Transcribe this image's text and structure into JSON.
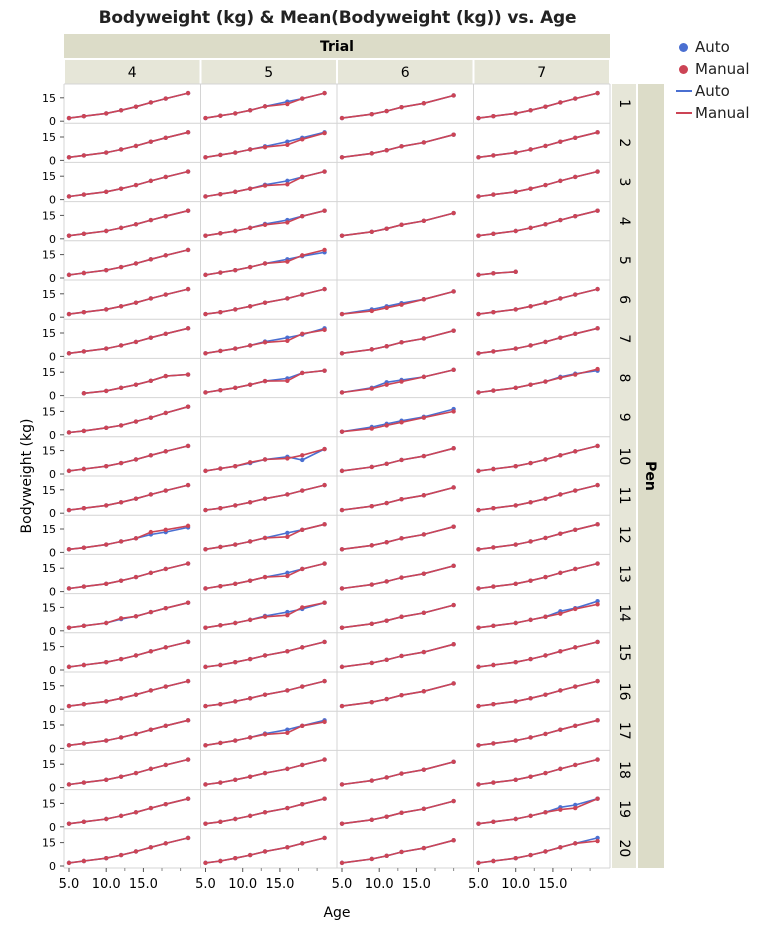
{
  "title": "Bodyweight (kg) & Mean(Bodyweight (kg)) vs. Age",
  "chart_data": {
    "type": "line",
    "title": "Bodyweight (kg) & Mean(Bodyweight (kg)) vs. Age",
    "xlabel": "Age",
    "ylabel": "Bodyweight (kg)",
    "column_group_label": "Trial",
    "row_group_label": "Pen",
    "trials": [
      "4",
      "5",
      "6",
      "7"
    ],
    "pens": [
      "1",
      "2",
      "3",
      "4",
      "5",
      "6",
      "7",
      "8",
      "9",
      "10",
      "11",
      "12",
      "13",
      "14",
      "15",
      "16",
      "17",
      "18",
      "19",
      "20"
    ],
    "x_ticks": [
      "5.0",
      "10.0",
      "15.0"
    ],
    "y_ticks": [
      "0",
      "15"
    ],
    "xlim": [
      5,
      22
    ],
    "ylim": [
      0,
      20
    ],
    "series": [
      {
        "name": "Auto",
        "type": "points",
        "color": "#4a6fd1"
      },
      {
        "name": "Manual",
        "type": "points",
        "color": "#cc4455"
      },
      {
        "name": "Auto",
        "type": "line",
        "color": "#4a6fd1"
      },
      {
        "name": "Manual",
        "type": "line",
        "color": "#cc4455"
      }
    ],
    "ages": {
      "4": [
        5,
        7,
        10,
        12,
        14,
        16,
        18,
        21
      ],
      "5": [
        5,
        7,
        9,
        11,
        13,
        16,
        18,
        21
      ],
      "6": [
        5,
        9,
        11,
        13,
        16,
        20
      ],
      "7": [
        5,
        7,
        10,
        12,
        14,
        16,
        18,
        21
      ]
    },
    "manual_base": [
      2,
      3.2,
      5,
      7,
      9.3,
      12,
      14.5,
      18
    ],
    "manual_base_6": [
      2,
      4.5,
      6.5,
      9,
      11.5,
      16.5
    ],
    "overrides": {
      "4-8": {
        "ages": [
          7,
          10,
          12,
          14,
          16,
          18,
          21
        ],
        "auto": [
          1.5,
          3,
          5,
          7,
          9.5,
          12.5,
          13.5
        ],
        "manual": [
          1.5,
          3,
          5,
          7,
          9.5,
          12.5,
          13.5
        ]
      },
      "4-9": {
        "ages": [
          5,
          7,
          10,
          12,
          14,
          16,
          18,
          21
        ],
        "auto": [
          1.5,
          2.5,
          4.5,
          6,
          8.5,
          11,
          14,
          18
        ],
        "manual": [
          1.5,
          2.5,
          4.5,
          6,
          8.5,
          11,
          14,
          18
        ]
      },
      "4-12": {
        "ages": [
          5,
          7,
          10,
          12,
          14,
          16,
          18,
          21
        ],
        "auto": [
          2,
          3,
          5,
          7,
          9,
          11.5,
          13,
          16
        ],
        "manual": [
          2,
          3,
          5,
          7,
          9,
          13,
          14.5,
          17
        ]
      },
      "4-14": {
        "ages": [
          5,
          7,
          10,
          12,
          14,
          16,
          18,
          21
        ],
        "auto": [
          2,
          3.2,
          5,
          7.5,
          9.3,
          12,
          14.5,
          18
        ],
        "manual": [
          2,
          3.2,
          5,
          8,
          9.3,
          12,
          14.5,
          18
        ]
      },
      "5-1": {
        "ages": [
          5,
          7,
          9,
          11,
          13,
          16,
          18,
          21
        ],
        "auto": [
          2,
          3.5,
          5,
          7,
          9.5,
          12.5,
          14.5,
          18
        ],
        "manual": [
          2,
          3.5,
          5,
          7,
          9.5,
          11,
          14.5,
          18
        ]
      },
      "5-2": {
        "ages": [
          5,
          7,
          9,
          11,
          13,
          16,
          18,
          21
        ],
        "auto": [
          2,
          3.5,
          5,
          7,
          9,
          12,
          14.5,
          18
        ],
        "manual": [
          2,
          3.5,
          5,
          7,
          8.5,
          10,
          13.5,
          17.5
        ]
      },
      "5-3": {
        "ages": [
          5,
          7,
          9,
          11,
          13,
          16,
          18,
          21
        ],
        "auto": [
          2,
          3.5,
          5,
          7,
          9.5,
          12,
          14.5,
          18
        ],
        "manual": [
          2,
          3.5,
          5,
          7,
          9,
          9.8,
          14.5,
          18
        ]
      },
      "5-4": {
        "ages": [
          5,
          7,
          9,
          11,
          13,
          16,
          18,
          21
        ],
        "auto": [
          2,
          3.5,
          5,
          7,
          9.5,
          12,
          14.5,
          18
        ],
        "manual": [
          2,
          3.5,
          5,
          7,
          9,
          10.5,
          14.5,
          18
        ]
      },
      "5-5": {
        "ages": [
          5,
          7,
          9,
          11,
          13,
          16,
          18,
          21
        ],
        "auto": [
          2,
          3.5,
          5,
          7,
          9.3,
          12,
          14,
          16.5
        ],
        "manual": [
          2,
          3.5,
          5,
          7,
          9.3,
          10.5,
          14.5,
          18
        ]
      },
      "5-7": {
        "ages": [
          5,
          7,
          9,
          11,
          13,
          16,
          18,
          21
        ],
        "auto": [
          2,
          3.5,
          5,
          7,
          9.5,
          12,
          14,
          18
        ],
        "manual": [
          2,
          3.5,
          5,
          7,
          9,
          10,
          14.5,
          17
        ]
      },
      "5-8": {
        "ages": [
          5,
          7,
          9,
          11,
          13,
          16,
          18,
          21
        ],
        "auto": [
          2,
          3.5,
          5,
          7,
          9.3,
          11,
          14.5,
          16
        ],
        "manual": [
          2,
          3.5,
          5,
          7,
          9.3,
          9.5,
          14.5,
          16
        ]
      },
      "5-9": {
        "ages": [],
        "auto": [],
        "manual": []
      },
      "5-10": {
        "ages": [
          5,
          7,
          9,
          11,
          13,
          16,
          18,
          21
        ],
        "auto": [
          2,
          3.5,
          5,
          7,
          9.3,
          11,
          9,
          16
        ],
        "manual": [
          2,
          3.5,
          5,
          7.5,
          9.3,
          10,
          12,
          16
        ]
      },
      "5-12": {
        "ages": [
          5,
          7,
          9,
          11,
          13,
          16,
          18,
          21
        ],
        "auto": [
          2,
          3.5,
          5,
          7,
          9.3,
          12.5,
          14.5,
          18
        ],
        "manual": [
          2,
          3.5,
          5,
          7,
          9.3,
          10,
          14.5,
          18
        ]
      },
      "5-13": {
        "ages": [
          5,
          7,
          9,
          11,
          13,
          16,
          18,
          21
        ],
        "auto": [
          2,
          3.5,
          5,
          7,
          9.3,
          12,
          14.5,
          18
        ],
        "manual": [
          2,
          3.5,
          5,
          7,
          9.3,
          10,
          14.5,
          18
        ]
      },
      "5-14": {
        "ages": [
          5,
          7,
          9,
          11,
          13,
          16,
          18,
          21
        ],
        "auto": [
          2,
          3.5,
          5,
          7,
          9.5,
          12,
          14,
          18
        ],
        "manual": [
          2,
          3.5,
          5,
          7,
          9,
          10,
          15,
          18
        ]
      },
      "5-17": {
        "ages": [
          5,
          7,
          9,
          11,
          13,
          16,
          18,
          21
        ],
        "auto": [
          2,
          3.5,
          5,
          7,
          9.5,
          12,
          14.5,
          18
        ],
        "manual": [
          2,
          3.5,
          5,
          7,
          9,
          10,
          14.5,
          17
        ]
      },
      "6-3": {
        "ages": [],
        "auto": [],
        "manual": []
      },
      "6-5": {
        "ages": [],
        "auto": [],
        "manual": []
      },
      "6-6": {
        "ages": [
          5,
          9,
          11,
          13,
          16,
          20
        ],
        "auto": [
          2,
          5,
          7,
          9,
          11.5,
          16.5
        ],
        "manual": [
          2,
          4,
          6,
          8,
          11.5,
          16.5
        ]
      },
      "6-7": {
        "ages": [
          5,
          9,
          11,
          13,
          16,
          20
        ],
        "auto": [
          2,
          4.5,
          6.5,
          9,
          11.5,
          16.5
        ],
        "manual": [
          2,
          4.5,
          6.5,
          9,
          11.5,
          16.5
        ]
      },
      "6-8": {
        "ages": [
          5,
          9,
          11,
          13,
          16,
          20
        ],
        "auto": [
          2,
          5,
          8.5,
          10,
          12,
          16.5
        ],
        "manual": [
          2,
          4.5,
          7,
          9,
          12,
          16.5
        ]
      },
      "6-9": {
        "ages": [
          5,
          9,
          11,
          13,
          16,
          20
        ],
        "auto": [
          2,
          5,
          7,
          9,
          11.5,
          16.5
        ],
        "manual": [
          2,
          4,
          6,
          8,
          11,
          15
        ]
      },
      "6-17": {
        "ages": [],
        "auto": [],
        "manual": []
      },
      "7-5": {
        "ages": [
          5,
          7,
          10
        ],
        "auto": [
          2,
          3,
          4
        ],
        "manual": [
          2,
          3,
          4
        ]
      },
      "7-8": {
        "ages": [
          5,
          7,
          10,
          12,
          14,
          16,
          18,
          21
        ],
        "auto": [
          2,
          3.2,
          5,
          7,
          9,
          12,
          14,
          16
        ],
        "manual": [
          2,
          3.2,
          5,
          7,
          9,
          11.5,
          13.5,
          17
        ]
      },
      "7-9": {
        "ages": [],
        "auto": [],
        "manual": []
      },
      "7-14": {
        "ages": [
          5,
          7,
          10,
          12,
          14,
          16,
          18,
          21
        ],
        "auto": [
          2,
          3.2,
          5,
          7,
          9,
          12.5,
          14.5,
          19
        ],
        "manual": [
          2,
          3.2,
          5,
          7,
          9,
          11,
          14,
          17
        ]
      },
      "7-19": {
        "ages": [
          5,
          7,
          10,
          12,
          14,
          16,
          18,
          21
        ],
        "auto": [
          2,
          3.2,
          5,
          7,
          9.3,
          12.5,
          14,
          18
        ],
        "manual": [
          2,
          3.2,
          5,
          7,
          9.3,
          11,
          12,
          18
        ]
      },
      "7-20": {
        "ages": [
          5,
          7,
          10,
          12,
          14,
          16,
          18,
          21
        ],
        "auto": [
          2,
          3.2,
          5,
          7,
          9.3,
          12,
          14.5,
          18
        ],
        "manual": [
          2,
          3.2,
          5,
          7,
          9.3,
          12,
          14.5,
          16
        ]
      }
    }
  },
  "legend": [
    {
      "label": "Auto",
      "kind": "dot",
      "color": "#4a6fd1"
    },
    {
      "label": "Manual",
      "kind": "dot",
      "color": "#cc4455"
    },
    {
      "label": "Auto",
      "kind": "line",
      "color": "#4a6fd1"
    },
    {
      "label": "Manual",
      "kind": "line",
      "color": "#cc4455"
    }
  ]
}
